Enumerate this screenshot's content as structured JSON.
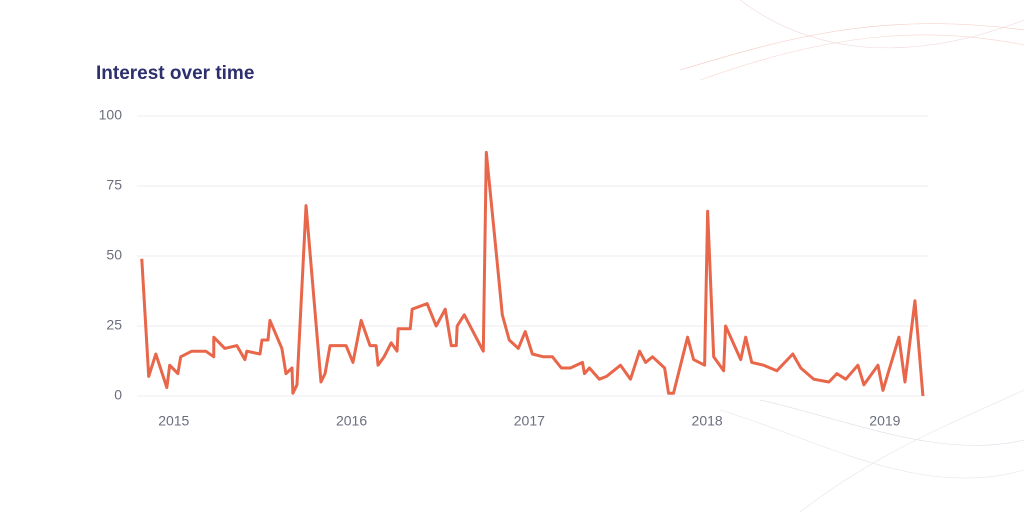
{
  "chart_data": {
    "type": "line",
    "title": "Interest over time",
    "x": [
      2014.82,
      2014.859,
      2014.899,
      2014.961,
      2014.977,
      2015.023,
      2015.039,
      2015.101,
      2015.18,
      2015.225,
      2015.225,
      2015.287,
      2015.355,
      2015.4,
      2015.411,
      2015.485,
      2015.496,
      2015.53,
      2015.541,
      2015.608,
      2015.631,
      2015.665,
      2015.67,
      2015.693,
      2015.744,
      2015.828,
      2015.851,
      2015.879,
      2015.969,
      2016.008,
      2016.054,
      2016.104,
      2016.138,
      2016.149,
      2016.183,
      2016.223,
      2016.256,
      2016.262,
      2016.33,
      2016.341,
      2016.425,
      2016.476,
      2016.527,
      2016.561,
      2016.589,
      2016.594,
      2016.634,
      2016.741,
      2016.758,
      2016.825,
      2016.848,
      2016.887,
      2016.938,
      2016.977,
      2017.017,
      2017.079,
      2017.13,
      2017.18,
      2017.231,
      2017.299,
      2017.31,
      2017.338,
      2017.394,
      2017.434,
      2017.513,
      2017.569,
      2017.62,
      2017.654,
      2017.693,
      2017.761,
      2017.783,
      2017.811,
      2017.89,
      2017.924,
      2017.986,
      2018.003,
      2018.037,
      2018.093,
      2018.104,
      2018.189,
      2018.217,
      2018.251,
      2018.318,
      2018.392,
      2018.482,
      2018.527,
      2018.6,
      2018.685,
      2018.73,
      2018.78,
      2018.848,
      2018.882,
      2018.961,
      2018.989,
      2019.079,
      2019.113,
      2019.169,
      2019.214
    ],
    "series": [
      {
        "color": "#e8664a",
        "values": [
          49,
          7,
          15,
          3,
          11,
          8,
          14,
          16,
          16,
          14,
          21,
          17,
          18,
          13,
          16,
          15,
          20,
          20,
          27,
          17,
          8,
          10,
          1,
          4,
          68,
          5,
          8,
          18,
          18,
          12,
          27,
          18,
          18,
          11,
          14,
          19,
          16,
          24,
          24,
          31,
          33,
          25,
          31,
          18,
          18,
          25,
          29,
          16,
          87,
          44,
          29,
          20,
          17,
          23,
          15,
          14,
          14,
          10,
          10,
          12,
          8,
          10,
          6,
          7,
          11,
          6,
          16,
          12,
          14,
          10,
          1,
          1,
          21,
          13,
          11,
          66,
          14,
          9,
          25,
          13,
          21,
          12,
          11,
          9,
          15,
          10,
          6,
          5,
          8,
          6,
          11,
          4,
          11,
          2,
          21,
          5,
          34,
          0
        ]
      }
    ],
    "xlim": [
      2014.81,
      2019.22
    ],
    "xticks": [
      2015,
      2016,
      2017,
      2018,
      2019
    ],
    "ylim": [
      0,
      100
    ],
    "yticks": [
      0,
      25,
      50,
      75,
      100
    ],
    "grid": true
  }
}
